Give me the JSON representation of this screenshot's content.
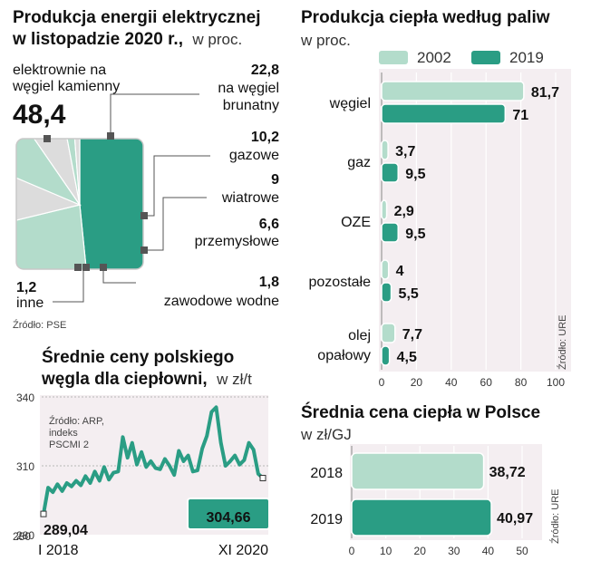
{
  "colors": {
    "teal": "#2a9d84",
    "light_green": "#b3dccb",
    "light_gray": "#dcdcdc",
    "panel_bg": "#f4eef1",
    "dark": "#111111"
  },
  "chart_data": [
    {
      "id": "pie",
      "type": "pie",
      "title": "Produkcja energii elektrycznej",
      "title_line2": "w listopadzie 2020 r.,",
      "title_unit": "w proc.",
      "source": "Źródło: PSE",
      "slices": [
        {
          "label": "elektrownie na węgiel kamienny",
          "label_lines": [
            "elektrownie na",
            "węgiel kamienny"
          ],
          "value": 48.4,
          "value_label": "48,4",
          "color": "#2a9d84"
        },
        {
          "label": "na węgiel brunatny",
          "label_lines": [
            "na węgiel",
            "brunatny"
          ],
          "value": 22.8,
          "value_label": "22,8",
          "color": "#b3dccb"
        },
        {
          "label": "gazowe",
          "label_lines": [
            "gazowe"
          ],
          "value": 10.2,
          "value_label": "10,2",
          "color": "#dcdcdc"
        },
        {
          "label": "wiatrowe",
          "label_lines": [
            "wiatrowe"
          ],
          "value": 9,
          "value_label": "9",
          "color": "#b3dccb"
        },
        {
          "label": "przemysłowe",
          "label_lines": [
            "przemysłowe"
          ],
          "value": 6.6,
          "value_label": "6,6",
          "color": "#dcdcdc"
        },
        {
          "label": "zawodowe wodne",
          "label_lines": [
            "zawodowe wodne"
          ],
          "value": 1.8,
          "value_label": "1,8",
          "color": "#b3dccb"
        },
        {
          "label": "inne",
          "label_lines": [
            "inne"
          ],
          "value": 1.2,
          "value_label": "1,2",
          "color": "#dcdcdc"
        }
      ]
    },
    {
      "id": "heat-by-fuel",
      "type": "bar",
      "title": "Produkcja ciepła według paliw",
      "title_unit": "w proc.",
      "source": "Źródło: URE",
      "categories": [
        "węgiel",
        "gaz",
        "OZE",
        "pozostałe",
        "olej opałowy"
      ],
      "category_lines": [
        [
          "węgiel"
        ],
        [
          "gaz"
        ],
        [
          "OZE"
        ],
        [
          "pozostałe"
        ],
        [
          "olej",
          "opałowy"
        ]
      ],
      "series": [
        {
          "name": "2002",
          "values": [
            81.7,
            3.7,
            2.9,
            4,
            7.7
          ],
          "labels": [
            "81,7",
            "3,7",
            "2,9",
            "4",
            "7,7"
          ],
          "color": "#b3dccb"
        },
        {
          "name": "2019",
          "values": [
            71,
            9.5,
            9.5,
            5.5,
            4.5
          ],
          "labels": [
            "71",
            "9,5",
            "9,5",
            "5,5",
            "4,5"
          ],
          "color": "#2a9d84"
        }
      ],
      "xlim": [
        0,
        100
      ],
      "ticks": [
        "0",
        "20",
        "40",
        "60",
        "80",
        "100"
      ],
      "grid": true,
      "legend": "top"
    },
    {
      "id": "coal-price",
      "type": "line",
      "title": "Średnie ceny polskiego",
      "title_line2": "węgla dla ciepłowni,",
      "title_unit": "w zł/t",
      "source_lines": [
        "Źródło: ARP,",
        "indeks",
        "PSCMI 2"
      ],
      "ylim": [
        280,
        340
      ],
      "yticks": [
        "280",
        "310",
        "340"
      ],
      "x_start_label": "I 2018",
      "x_end_label": "XI 2020",
      "first_value_label": "289,04",
      "last_value_label": "304,66",
      "values": [
        289.04,
        300.5,
        298.5,
        302,
        299,
        302.5,
        301,
        303.5,
        301.5,
        305.5,
        302.5,
        307.5,
        303.5,
        309.5,
        304,
        307,
        307.5,
        322.5,
        313.5,
        320,
        310.5,
        316,
        309.5,
        312,
        309,
        308.5,
        313,
        310,
        306,
        316.5,
        312,
        314.5,
        307.5,
        308,
        317.5,
        323,
        333.5,
        335.5,
        320,
        310,
        312,
        314.5,
        310.5,
        312.5,
        320,
        317,
        306.5,
        304.66
      ]
    },
    {
      "id": "heat-price",
      "type": "bar",
      "title": "Średnia cena ciepła w Polsce",
      "title_unit": "w zł/GJ",
      "source": "Źródło: URE",
      "categories": [
        "2018",
        "2019"
      ],
      "values": [
        38.72,
        40.97
      ],
      "labels": [
        "38,72",
        "40,97"
      ],
      "colors": [
        "#b3dccb",
        "#2a9d84"
      ],
      "xlim": [
        0,
        50
      ],
      "ticks": [
        "0",
        "10",
        "20",
        "30",
        "40",
        "50"
      ],
      "grid": true
    }
  ]
}
